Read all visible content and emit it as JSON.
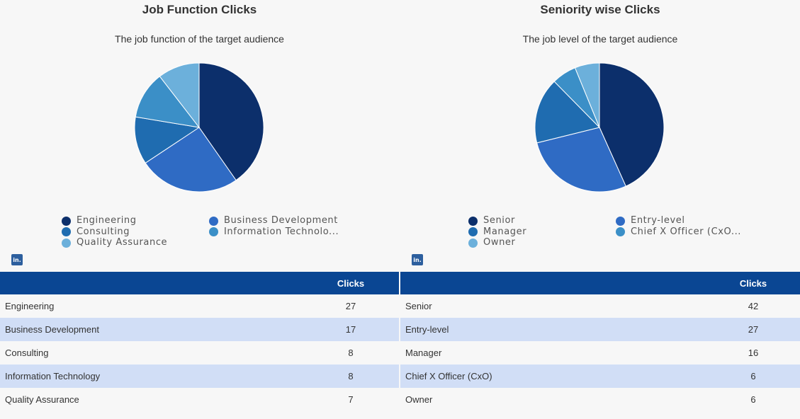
{
  "colors": {
    "slices": [
      "#0c2f6b",
      "#2f6bc4",
      "#1f6cb0",
      "#3b8fc7",
      "#6cb0db"
    ],
    "header_bg": "#0a4693",
    "row_alt": "#d1def6"
  },
  "icons": {
    "logo": "linkedin-icon",
    "logo_text": "in."
  },
  "chart_data": [
    {
      "type": "pie",
      "title": "Job Function Clicks",
      "subtitle": "The job function of the target audience",
      "categories": [
        "Engineering",
        "Business Development",
        "Consulting",
        "Information Technology",
        "Quality Assurance"
      ],
      "legend_labels": [
        "Engineering",
        "Business Development",
        "Consulting",
        "Information Technolo...",
        "Quality Assurance"
      ],
      "values": [
        27,
        17,
        8,
        8,
        7
      ],
      "column_header": "Clicks",
      "legend_position": "bottom"
    },
    {
      "type": "pie",
      "title": "Seniority wise Clicks",
      "subtitle": "The job level of the target audience",
      "categories": [
        "Senior",
        "Entry-level",
        "Manager",
        "Chief X Officer (CxO)",
        "Owner"
      ],
      "legend_labels": [
        "Senior",
        "Entry-level",
        "Manager",
        "Chief X Officer (CxO...",
        "Owner"
      ],
      "values": [
        42,
        27,
        16,
        6,
        6
      ],
      "column_header": "Clicks",
      "legend_position": "bottom"
    }
  ]
}
